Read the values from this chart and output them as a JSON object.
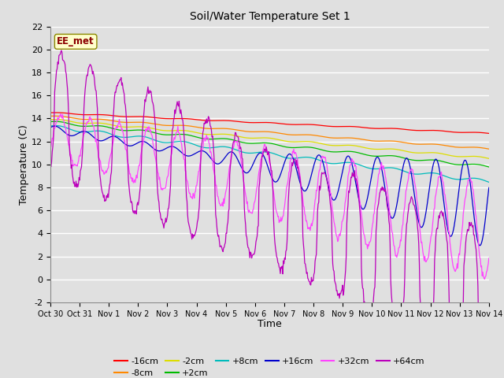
{
  "title": "Soil/Water Temperature Set 1",
  "xlabel": "Time",
  "ylabel": "Temperature (C)",
  "ylim": [
    -2,
    22
  ],
  "xlim": [
    0,
    15
  ],
  "xtick_labels": [
    "Oct 30",
    "Oct 31",
    "Nov 1",
    "Nov 2",
    "Nov 3",
    "Nov 4",
    "Nov 5",
    "Nov 6",
    "Nov 7",
    "Nov 8",
    "Nov 9",
    "Nov 10",
    "Nov 11",
    "Nov 12",
    "Nov 13",
    "Nov 14"
  ],
  "xtick_positions": [
    0,
    1,
    2,
    3,
    4,
    5,
    6,
    7,
    8,
    9,
    10,
    11,
    12,
    13,
    14,
    15
  ],
  "ytick_values": [
    -2,
    0,
    2,
    4,
    6,
    8,
    10,
    12,
    14,
    16,
    18,
    20,
    22
  ],
  "legend_label": "EE_met",
  "series_labels": [
    "-16cm",
    "-8cm",
    "-2cm",
    "+2cm",
    "+8cm",
    "+16cm",
    "+32cm",
    "+64cm"
  ],
  "series_colors": [
    "#ff0000",
    "#ff8800",
    "#dddd00",
    "#00bb00",
    "#00bbbb",
    "#0000cc",
    "#ff44ff",
    "#bb00bb"
  ],
  "background_color": "#e0e0e0",
  "plot_bg_color": "#e0e0e0",
  "grid_color": "#ffffff"
}
